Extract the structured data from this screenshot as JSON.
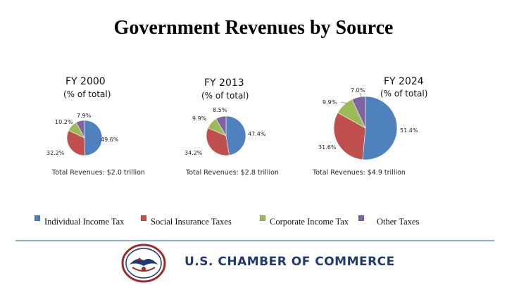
{
  "title": "Government Revenues by Source",
  "colors": {
    "individual": "#4f81bd",
    "social": "#c0504d",
    "corporate": "#9bbb59",
    "other": "#8064a2",
    "rule": "#7fb2d6",
    "org_text": "#1f3a6e"
  },
  "chart_data": [
    {
      "type": "pie",
      "title": "FY 2000",
      "subtitle": "(% of total)",
      "total_label": "Total Revenues: $2.0 trillion",
      "categories": [
        "Individual Income Tax",
        "Social Insurance Taxes",
        "Corporate Income Tax",
        "Other Taxes"
      ],
      "values": [
        49.6,
        32.2,
        10.2,
        7.9
      ],
      "labels": [
        "49.6%",
        "32.2%",
        "10.2%",
        "7.9%"
      ]
    },
    {
      "type": "pie",
      "title": "FY 2013",
      "subtitle": "(% of total)",
      "total_label": "Total Revenues: $2.8 trillion",
      "categories": [
        "Individual Income Tax",
        "Social Insurance Taxes",
        "Corporate Income Tax",
        "Other Taxes"
      ],
      "values": [
        47.4,
        34.2,
        9.9,
        8.5
      ],
      "labels": [
        "47.4%",
        "34.2%",
        "9.9%",
        "8.5%"
      ]
    },
    {
      "type": "pie",
      "title": "FY 2024",
      "subtitle": "(% of total)",
      "total_label": "Total Revenues: $4.9 trillion",
      "categories": [
        "Individual Income Tax",
        "Social Insurance Taxes",
        "Corporate Income Tax",
        "Other Taxes"
      ],
      "values": [
        51.4,
        31.6,
        9.9,
        7.0
      ],
      "labels": [
        "51.4%",
        "31.6%",
        "9.9%",
        "7.0%"
      ]
    }
  ],
  "legend": [
    {
      "label": "Individual Income Tax",
      "color": "#4f81bd"
    },
    {
      "label": "Social Insurance Taxes",
      "color": "#c0504d"
    },
    {
      "label": "Corporate Income Tax",
      "color": "#9bbb59"
    },
    {
      "label": "Other Taxes",
      "color": "#8064a2"
    }
  ],
  "footer": {
    "org_name": "U.S. CHAMBER OF COMMERCE",
    "logo_icon": "chamber-seal-icon"
  }
}
